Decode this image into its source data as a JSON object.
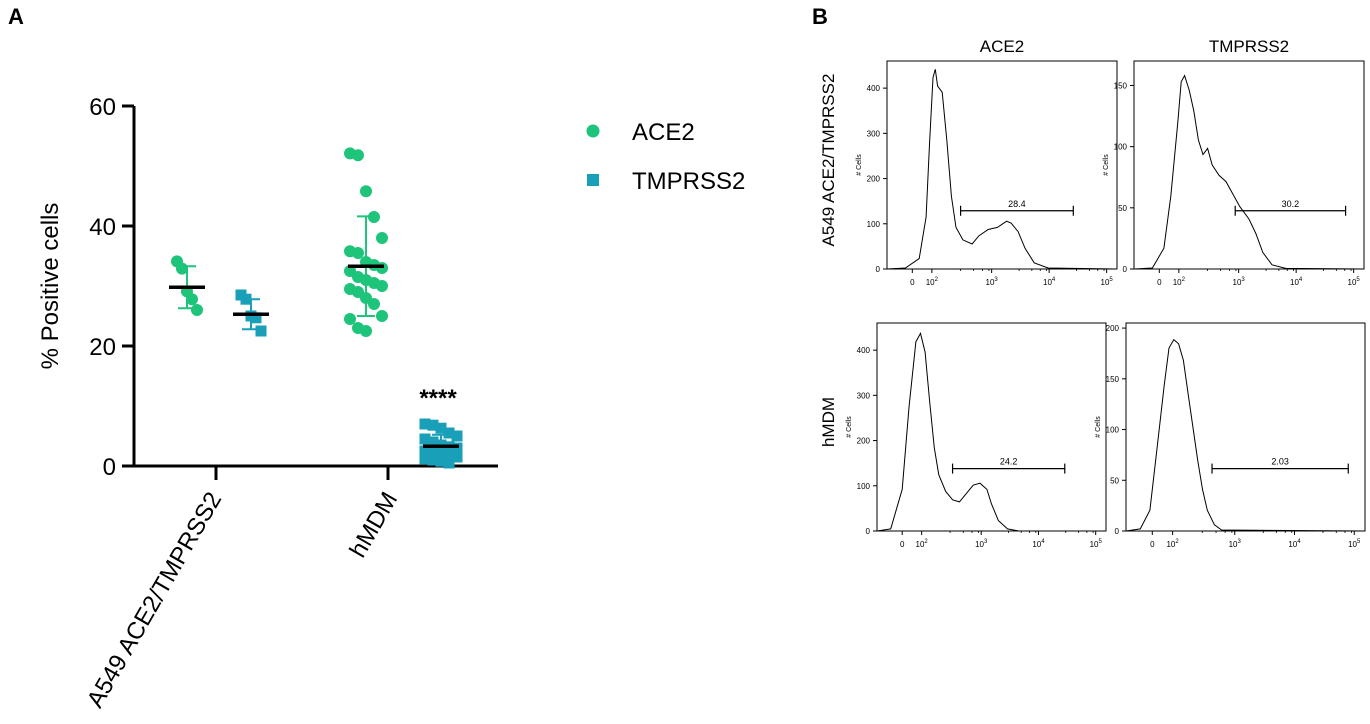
{
  "chart_data": [
    {
      "type": "scatter",
      "panel": "A",
      "ylabel": "% Positive cells",
      "ylim": [
        0,
        60
      ],
      "yticks": [
        "0",
        "20",
        "40",
        "60"
      ],
      "categories": [
        "A549 ACE2/TMPRSS2",
        "hMDM"
      ],
      "legend": [
        {
          "name": "ACE2",
          "marker": "circle",
          "color": "#1dc47a"
        },
        {
          "name": "TMPRSS2",
          "marker": "square",
          "color": "#1a9fb8"
        }
      ],
      "significance": {
        "label": "****",
        "category": "hMDM",
        "series": "TMPRSS2"
      },
      "series": [
        {
          "name": "ACE2",
          "category": "A549 ACE2/TMPRSS2",
          "mean": 29.8,
          "sd_low": 26.3,
          "sd_high": 33.3,
          "values": [
            34.1,
            32.9,
            29.1,
            27.8,
            26.0
          ]
        },
        {
          "name": "TMPRSS2",
          "category": "A549 ACE2/TMPRSS2",
          "mean": 25.3,
          "sd_low": 22.8,
          "sd_high": 27.8,
          "values": [
            28.5,
            27.8,
            25.0,
            24.7,
            22.5
          ]
        },
        {
          "name": "ACE2",
          "category": "hMDM",
          "mean": 33.3,
          "sd_low": 25.0,
          "sd_high": 41.6,
          "values": [
            52.1,
            51.8,
            45.8,
            41.5,
            38.0,
            35.8,
            35.5,
            34.0,
            33.5,
            33.0,
            32.5,
            31.5,
            31.0,
            30.5,
            30.0,
            29.5,
            29.0,
            28.0,
            27.0,
            25.0,
            24.5,
            23.0,
            22.5
          ]
        },
        {
          "name": "TMPRSS2",
          "category": "hMDM",
          "mean": 3.3,
          "sd_low": 1.4,
          "sd_high": 5.2,
          "values": [
            7.0,
            6.8,
            6.3,
            5.5,
            5.0,
            4.5,
            4.0,
            3.5,
            3.2,
            3.0,
            2.5,
            2.2,
            2.0,
            1.8,
            1.5,
            1.2,
            1.0,
            0.8,
            0.5
          ]
        }
      ]
    },
    {
      "type": "histogram",
      "panel": "B",
      "columns": [
        "ACE2",
        "TMPRSS2"
      ],
      "rows": [
        "A549 ACE2/TMPRSS2",
        "hMDM"
      ],
      "ylabel": "# Cells",
      "xtick_base": [
        "0",
        "10",
        "10",
        "10",
        "10"
      ],
      "xtick_exp": [
        "2",
        "3",
        "4",
        "5"
      ],
      "plots": [
        {
          "row": "A549 ACE2/TMPRSS2",
          "col": "ACE2",
          "ymax": 460,
          "yticks": [
            "0",
            "100",
            "200",
            "300",
            "400"
          ],
          "gate": "28.4"
        },
        {
          "row": "A549 ACE2/TMPRSS2",
          "col": "TMPRSS2",
          "ymax": 170,
          "yticks": [
            "0",
            "50",
            "100",
            "150"
          ],
          "gate": "30.2"
        },
        {
          "row": "hMDM",
          "col": "ACE2",
          "ymax": 460,
          "yticks": [
            "0",
            "100",
            "200",
            "300",
            "400"
          ],
          "gate": "24.2"
        },
        {
          "row": "hMDM",
          "col": "TMPRSS2",
          "ymax": 205,
          "yticks": [
            "0",
            "50",
            "100",
            "150",
            "200"
          ],
          "gate": "2.03"
        }
      ]
    }
  ]
}
